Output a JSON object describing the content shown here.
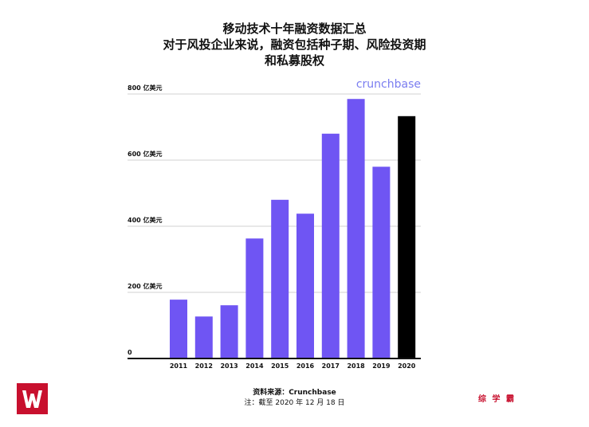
{
  "title_lines": [
    "移动技术十年融资数据汇总",
    "对于风投企业来说，融资包括种子期、风险投资期",
    "和私募股权"
  ],
  "brand": "crunchbase",
  "source_label": "资料来源：Crunchbase",
  "note": "注：截至 2020 年 12 月 18 日",
  "watermark": "综 学 霸",
  "colors": {
    "bar": "#6f55f3",
    "highlight": "#000000",
    "brand": "#7a7df0",
    "logo": "#c8102e"
  },
  "chart_data": {
    "type": "bar",
    "title": "移动技术十年融资数据汇总 对于风投企业来说，融资包括种子期、风险投资期和私募股权",
    "categories": [
      "2011",
      "2012",
      "2013",
      "2014",
      "2015",
      "2016",
      "2017",
      "2018",
      "2019",
      "2020"
    ],
    "values": [
      178,
      127,
      161,
      363,
      480,
      438,
      680,
      785,
      580,
      733
    ],
    "y_ticks": [
      0,
      200,
      400,
      600,
      800
    ],
    "y_tick_labels": [
      "0",
      "200 亿美元",
      "400 亿美元",
      "600 亿美元",
      "800 亿美元"
    ],
    "ylim": [
      0,
      800
    ],
    "highlight_category": "2020",
    "grid": true
  }
}
